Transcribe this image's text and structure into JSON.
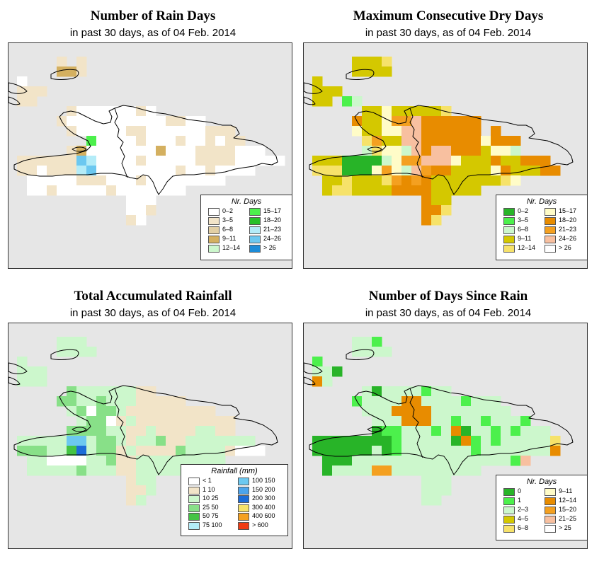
{
  "panels": [
    {
      "title": "Number of Rain Days",
      "subtitle": "in past 30 days, as of  04 Feb. 2014",
      "legend": {
        "title": "Nr. Days",
        "items": [
          {
            "label": "0–2",
            "color": "#ffffff"
          },
          {
            "label": "3–5",
            "color": "#f2e4c8"
          },
          {
            "label": "6–8",
            "color": "#e2cfa4"
          },
          {
            "label": "9–11",
            "color": "#d4b060"
          },
          {
            "label": "12–14",
            "color": "#ccf7cc"
          },
          {
            "label": "15–17",
            "color": "#4cf04c"
          },
          {
            "label": "18–20",
            "color": "#28c028"
          },
          {
            "label": "21–23",
            "color": "#b4ecf8"
          },
          {
            "label": "24–26",
            "color": "#6cc8f0"
          },
          {
            "label": "> 26",
            "color": "#1c8cd8"
          }
        ]
      },
      "palette": [
        "#e6e6e6",
        "#ffffff",
        "#f2e4c8",
        "#d4b060",
        "#4cf04c",
        "#6cc8f0",
        "#b4ecf8",
        "#ccf7cc",
        "#e2cfa4"
      ],
      "grid": [
        "00000000000000000000000000000",
        "00000202000000000000000000000",
        "00000332000000000000000000000",
        "01000000000000000000000000000",
        "02220000000000000000000000000",
        "02200000000000000000000000000",
        "00000021111112100000000000000",
        "00000211111111112211000000000",
        "00000021111122111111222000000",
        "00000000411112111211212200000",
        "00000023111111131112222111000",
        "02222225611112111112222111110",
        "02212226511111111211211110000",
        "00111112221112111111110000000",
        "00112111112111111100000000000",
        "00000000000011100000000000000",
        "00000000000011200000000000000",
        "00000000000021000000000000000",
        "00000000000000000000000000000",
        "00000000000000000000000000000",
        "00000000000000000000000000000",
        "00000000000000000000000000000"
      ]
    },
    {
      "title": "Maximum Consecutive Dry Days",
      "subtitle": "in past 30 days, as of  04 Feb. 2014",
      "legend": {
        "title": "Nr. Days",
        "items": [
          {
            "label": "0–2",
            "color": "#28b428"
          },
          {
            "label": "3–5",
            "color": "#4cf04c"
          },
          {
            "label": "6–8",
            "color": "#ccf7cc"
          },
          {
            "label": "9–11",
            "color": "#d4c800"
          },
          {
            "label": "12–14",
            "color": "#f6e26a"
          },
          {
            "label": "15–17",
            "color": "#fffcc8"
          },
          {
            "label": "18–20",
            "color": "#e88c00"
          },
          {
            "label": "21–23",
            "color": "#f4a020"
          },
          {
            "label": "24–26",
            "color": "#f8c0a0"
          },
          {
            "label": "> 26",
            "color": "#ffffff"
          }
        ]
      },
      "palette": [
        "#e6e6e6",
        "#d4c800",
        "#f6e26a",
        "#fffcc8",
        "#e88c00",
        "#f4a020",
        "#f8c0a0",
        "#ccf7cc",
        "#4cf04c",
        "#28b428",
        "#ffffff"
      ],
      "grid": [
        "00000000000000000000000000000",
        "00000111200000000000000000000",
        "00000111100000000000000000000",
        "01000000000000000000000000000",
        "01110000000000000000000000000",
        "01108700000000000000000000000",
        "00000011311111200000000000000",
        "00000411355644444400000000000",
        "00000311336644444404000000000",
        "00000025116644444434440000000",
        "00000072337646644413370000000",
        "01119999735566631114114440000",
        "02229993537654411113411144000",
        "00112111254541111111230000000",
        "00122111144441111100000000000",
        "00000000000041100000000000000",
        "00000000000044200000000000000",
        "00000000000042000000000000000",
        "00000000000000000000000000000",
        "00000000000000000000000000000",
        "00000000000000000000000000000",
        "00000000000000000000000000000"
      ]
    },
    {
      "title": "Total Accumulated Rainfall",
      "subtitle": "in past 30 days, as of  04 Feb. 2014",
      "legend": {
        "title": "Rainfall (mm)",
        "items": [
          {
            "label": "< 1",
            "color": "#ffffff"
          },
          {
            "label": "1   10",
            "color": "#f2e4c8"
          },
          {
            "label": "10   25",
            "color": "#ccf7cc"
          },
          {
            "label": "25   50",
            "color": "#88e088"
          },
          {
            "label": "50   75",
            "color": "#44c444"
          },
          {
            "label": "75   100",
            "color": "#b4ecf8"
          },
          {
            "label": "100   150",
            "color": "#6cc8f0"
          },
          {
            "label": "150   200",
            "color": "#4ca4ec"
          },
          {
            "label": "200   300",
            "color": "#1c6cd8"
          },
          {
            "label": "300   400",
            "color": "#f6e26a"
          },
          {
            "label": "400   600",
            "color": "#f4a020"
          },
          {
            "label": "> 600",
            "color": "#f03c14"
          }
        ]
      },
      "palette": [
        "#e6e6e6",
        "#ccf7cc",
        "#88e088",
        "#ffffff",
        "#f2e4c8",
        "#44c444",
        "#6cc8f0",
        "#1c6cd8"
      ],
      "grid": [
        "00000000000000000000000000000",
        "00000111000000000000000000000",
        "00000111100000000000000000000",
        "01000000000000000000000000000",
        "01110000000000000000000000000",
        "01110000000000000000000000000",
        "00000021111114400000000000000",
        "00000221121114444400000000000",
        "00000012322144444444400000000",
        "00000001223414444444444000000",
        "00000022221144144441144000000",
        "01111166122141124411111110000",
        "02221157122414444211114333000",
        "00113333112441111111110000000",
        "00111112111441111100000000000",
        "00000000000041100000000000000",
        "00000000000044100000000000000",
        "00000000000041000000000000000",
        "00000000000000000000000000000",
        "00000000000000000000000000000",
        "00000000000000000000000000000",
        "00000000000000000000000000000"
      ]
    },
    {
      "title": "Number of Days Since Rain",
      "subtitle": "in past 30 days, as of  04 Feb. 2014",
      "legend": {
        "title": "Nr. Days",
        "items": [
          {
            "label": "0",
            "color": "#28b428"
          },
          {
            "label": "1",
            "color": "#4cf04c"
          },
          {
            "label": "2–3",
            "color": "#ccf7cc"
          },
          {
            "label": "4–5",
            "color": "#d4c800"
          },
          {
            "label": "6–8",
            "color": "#f6e26a"
          },
          {
            "label": "9–11",
            "color": "#fffcc8"
          },
          {
            "label": "12–14",
            "color": "#e88c00"
          },
          {
            "label": "15–20",
            "color": "#f4a020"
          },
          {
            "label": "21–25",
            "color": "#f8c0a0"
          },
          {
            "label": "> 25",
            "color": "#ffffff"
          }
        ]
      },
      "palette": [
        "#e6e6e6",
        "#ccf7cc",
        "#4cf04c",
        "#28b428",
        "#e88c00",
        "#f4a020",
        "#f6e26a",
        "#f8c0a0",
        "#d4c800"
      ],
      "grid": [
        "00000000000000000000000000000",
        "00000112000000000000000000000",
        "00000111100000000000000000000",
        "02000000000000000000000000000",
        "01130000000000000000000000000",
        "04100000000000000000000000000",
        "00000013111121100000000000000",
        "00000211114411112111000000000",
        "00000011144441111111100000000",
        "00000001114441121121112000000",
        "00000003221112143112121110000",
        "03333333321111134212111116000",
        "03333331321111111211111114000",
        "00333111111111111111127000000",
        "00311115511111111100000000000",
        "00000000000011100000000000000",
        "00000000000011100000000000000",
        "00000000000011000000000000000",
        "00000000000000000000000000000",
        "00000000000000000000000000000",
        "00000000000000000000000000000",
        "00000000000000000000000000000"
      ]
    }
  ]
}
